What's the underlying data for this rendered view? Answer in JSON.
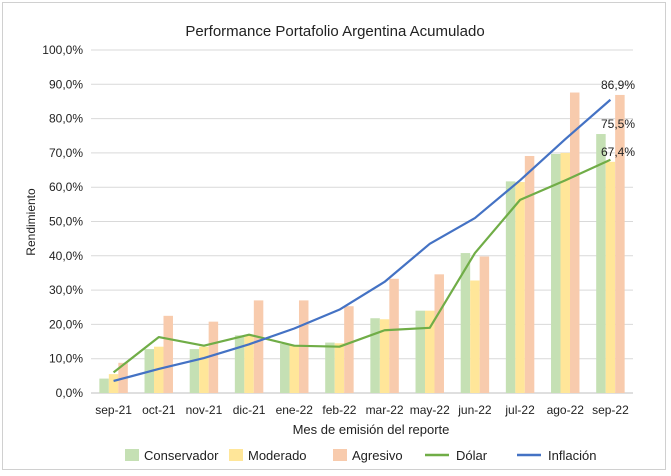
{
  "chart_data": {
    "type": "bar",
    "title": "Performance Portafolio Argentina Acumulado",
    "xlabel": "Mes de emisión del reporte",
    "ylabel": "Rendimiento",
    "ylim": [
      0,
      100
    ],
    "yticks": [
      "0,0%",
      "10,0%",
      "20,0%",
      "30,0%",
      "40,0%",
      "50,0%",
      "60,0%",
      "70,0%",
      "80,0%",
      "90,0%",
      "100,0%"
    ],
    "grid": true,
    "legend_position": "bottom",
    "categories": [
      "sep-21",
      "oct-21",
      "nov-21",
      "dic-21",
      "ene-22",
      "feb-22",
      "mar-22",
      "may-22",
      "jun-22",
      "jul-22",
      "ago-22",
      "sep-22"
    ],
    "series": [
      {
        "name": "Conservador",
        "kind": "bar",
        "color": "#c5e0b4",
        "values": [
          4.2,
          12.8,
          12.8,
          16.8,
          14.3,
          14.7,
          21.8,
          24.0,
          40.8,
          61.7,
          69.7,
          75.5
        ]
      },
      {
        "name": "Moderado",
        "kind": "bar",
        "color": "#ffe699",
        "values": [
          5.5,
          13.5,
          13.5,
          17.0,
          14.0,
          14.5,
          21.5,
          24.0,
          32.8,
          61.5,
          70.0,
          67.4
        ]
      },
      {
        "name": "Agresivo",
        "kind": "bar",
        "color": "#f8cbad",
        "values": [
          8.8,
          22.5,
          20.8,
          27.0,
          27.0,
          25.3,
          33.3,
          34.6,
          39.8,
          69.1,
          87.6,
          86.9
        ]
      },
      {
        "name": "Dólar",
        "kind": "line",
        "color": "#70ad47",
        "values": [
          6.0,
          16.3,
          13.8,
          17.0,
          13.8,
          13.5,
          18.3,
          19.0,
          40.8,
          56.3,
          62.0,
          68.0
        ]
      },
      {
        "name": "Inflación",
        "kind": "line",
        "color": "#4472c4",
        "values": [
          3.5,
          7.0,
          10.2,
          14.2,
          18.8,
          24.3,
          32.4,
          43.5,
          51.0,
          62.0,
          74.0,
          85.5
        ]
      }
    ],
    "annotations": [
      {
        "series": "Agresivo",
        "category": "sep-22",
        "text": "86,9%"
      },
      {
        "series": "Conservador",
        "category": "sep-22",
        "text": "75,5%"
      },
      {
        "series": "Moderado",
        "category": "sep-22",
        "text": "67,4%"
      }
    ]
  }
}
